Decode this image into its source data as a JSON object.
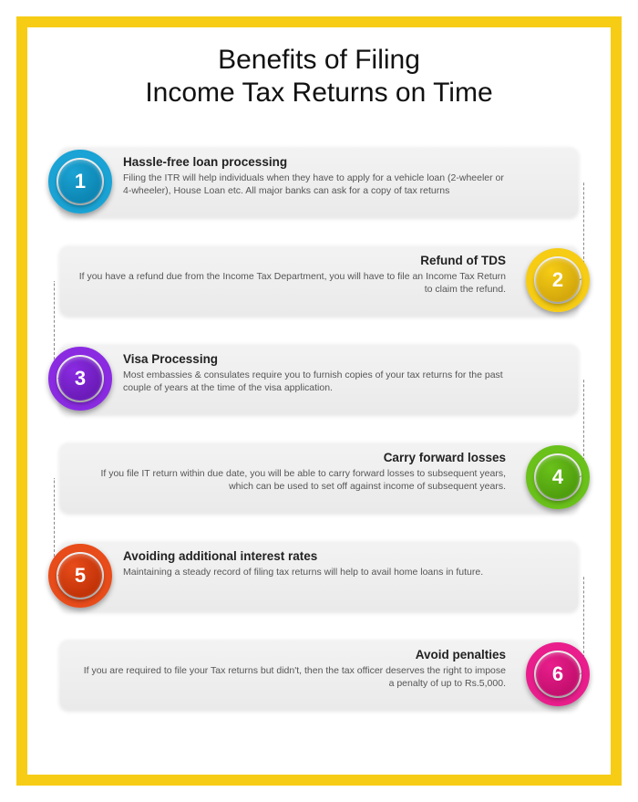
{
  "title_line1": "Benefits of Filing",
  "title_line2": "Income Tax Returns on Time",
  "frame_border_color": "#f6cc15",
  "card_background": "linear-gradient(180deg,#f3f3f3,#eaeaea)",
  "title_fontsize": 30,
  "card_title_fontsize": 13.5,
  "card_desc_fontsize": 10.5,
  "items": [
    {
      "num": "1",
      "side": "left",
      "title": "Hassle-free loan processing",
      "desc": "Filing the ITR will help individuals when they have to apply for a vehicle loan (2-wheeler or 4-wheeler), House Loan etc. All major banks can ask for a copy of tax returns",
      "ring_color": "#1aa3d4",
      "disk_color": "#0d86b3"
    },
    {
      "num": "2",
      "side": "right",
      "title": "Refund of TDS",
      "desc": "If you have a refund due from the Income Tax Department, you will have to file an Income Tax Return to claim the refund.",
      "ring_color": "#f6cc15",
      "disk_color": "#d4a80c"
    },
    {
      "num": "3",
      "side": "left",
      "title": "Visa Processing",
      "desc": "Most embassies &amp; consulates require you to furnish copies of your tax returns for the past couple of years at the time of the visa application.",
      "ring_color": "#8a2be2",
      "disk_color": "#6b1bb8"
    },
    {
      "num": "4",
      "side": "right",
      "title": "Carry forward losses",
      "desc": "If you file IT return within due date, you will be able to carry forward losses to subsequent years, which can be used to set off against income of subsequent years.",
      "ring_color": "#6ac11a",
      "disk_color": "#4f9e0e"
    },
    {
      "num": "5",
      "side": "left",
      "title": "Avoiding additional interest rates",
      "desc": "Maintaining a steady record of filing tax returns will help to avail home loans in future.",
      "ring_color": "#e84c1a",
      "disk_color": "#c23308"
    },
    {
      "num": "6",
      "side": "right",
      "title": "Avoid penalties",
      "desc": "If you are required to file your Tax returns but didn't, then the tax officer deserves the right to impose a penalty of up to Rs.5,000.",
      "ring_color": "#e91e8c",
      "disk_color": "#c40f6e"
    }
  ]
}
